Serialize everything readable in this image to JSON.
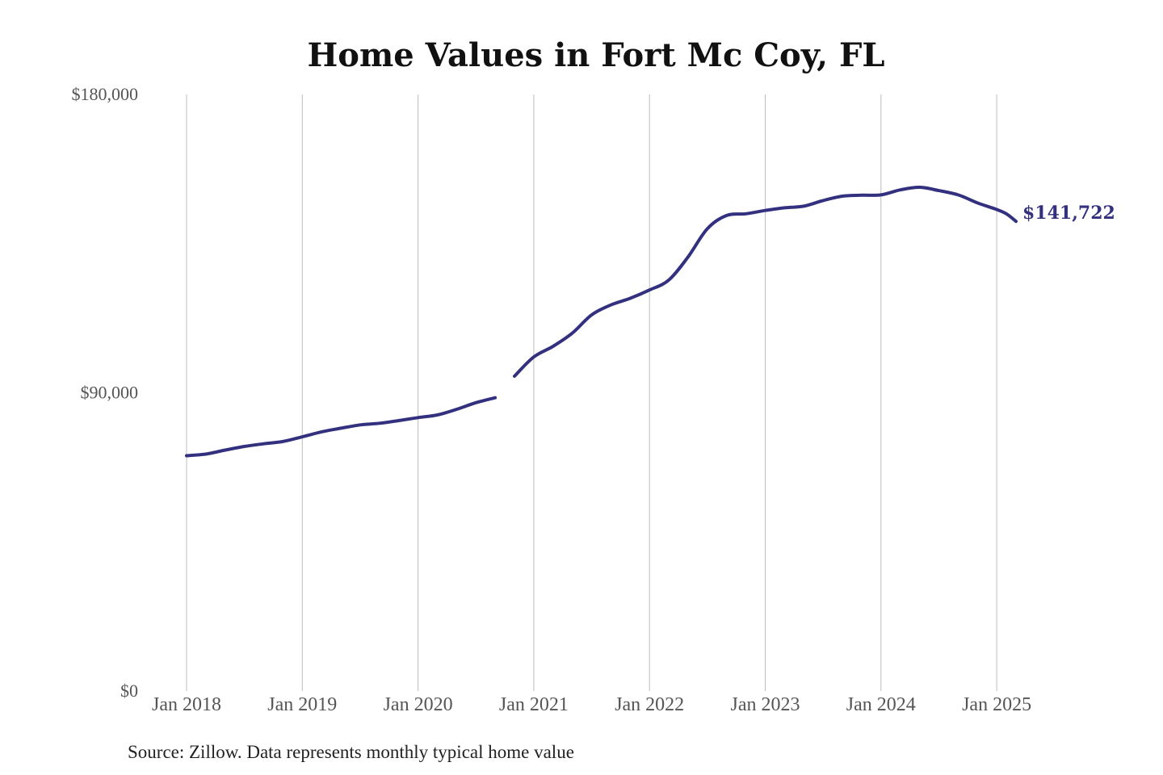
{
  "chart_data": {
    "type": "line",
    "title": "Home Values in Fort Mc Coy, FL",
    "xlabel": "",
    "ylabel": "",
    "ylim": [
      0,
      180000
    ],
    "y_ticks": [
      "$0",
      "$90,000",
      "$180,000"
    ],
    "y_tick_values": [
      0,
      90000,
      180000
    ],
    "x_ticks": [
      "Jan 2018",
      "Jan 2019",
      "Jan 2020",
      "Jan 2021",
      "Jan 2022",
      "Jan 2023",
      "Jan 2024",
      "Jan 2025"
    ],
    "x_tick_values": [
      "2018-01",
      "2019-01",
      "2020-01",
      "2021-01",
      "2022-01",
      "2023-01",
      "2024-01",
      "2025-01"
    ],
    "grid": "vertical",
    "color": "#33307f",
    "end_label": "$141,722",
    "source": "Source: Zillow. Data represents monthly typical home value",
    "series": [
      {
        "segments": [
          [
            [
              "2018-01",
              71000
            ],
            [
              "2018-03",
              71500
            ],
            [
              "2018-05",
              72700
            ],
            [
              "2018-07",
              73800
            ],
            [
              "2018-09",
              74600
            ],
            [
              "2018-11",
              75300
            ],
            [
              "2019-01",
              76700
            ],
            [
              "2019-03",
              78200
            ],
            [
              "2019-05",
              79300
            ],
            [
              "2019-07",
              80300
            ],
            [
              "2019-09",
              80800
            ],
            [
              "2019-11",
              81600
            ],
            [
              "2020-01",
              82500
            ],
            [
              "2020-03",
              83300
            ],
            [
              "2020-05",
              85000
            ],
            [
              "2020-07",
              87000
            ],
            [
              "2020-09",
              88500
            ]
          ],
          [
            [
              "2020-11",
              95000
            ],
            [
              "2021-01",
              100800
            ],
            [
              "2021-03",
              104000
            ],
            [
              "2021-05",
              108000
            ],
            [
              "2021-07",
              113500
            ],
            [
              "2021-09",
              116500
            ],
            [
              "2021-11",
              118500
            ],
            [
              "2022-01",
              121000
            ],
            [
              "2022-03",
              124000
            ],
            [
              "2022-05",
              131000
            ],
            [
              "2022-07",
              139500
            ],
            [
              "2022-09",
              143500
            ],
            [
              "2022-11",
              144000
            ],
            [
              "2023-01",
              145000
            ],
            [
              "2023-03",
              145800
            ],
            [
              "2023-05",
              146300
            ],
            [
              "2023-07",
              148000
            ],
            [
              "2023-09",
              149300
            ],
            [
              "2023-11",
              149600
            ],
            [
              "2024-01",
              149700
            ],
            [
              "2024-03",
              151200
            ],
            [
              "2024-05",
              152000
            ],
            [
              "2024-07",
              151000
            ],
            [
              "2024-09",
              149700
            ],
            [
              "2024-11",
              147300
            ],
            [
              "2025-01",
              145300
            ],
            [
              "2025-02",
              144000
            ],
            [
              "2025-03",
              141722
            ]
          ]
        ]
      }
    ]
  }
}
